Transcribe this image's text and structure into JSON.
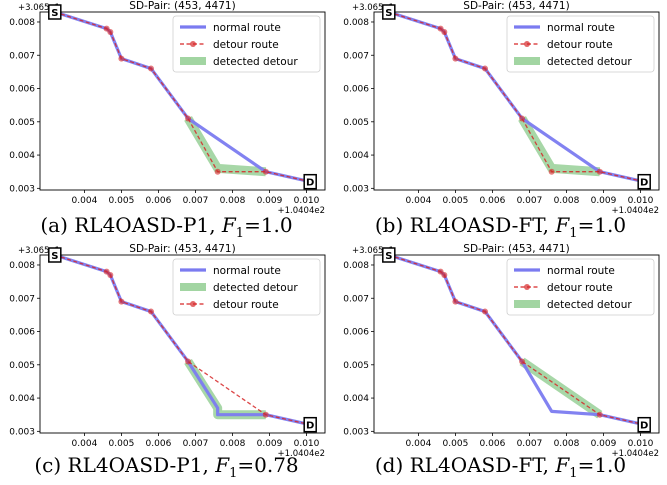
{
  "figure": {
    "panels": [
      {
        "caption": {
          "prefix": "(a) ",
          "method": "RL4OASD-P1",
          "f_label": "F",
          "f_sub": "1",
          "f_value": "=1.0"
        },
        "legend": [
          "normal route",
          "detour route",
          "detected detour"
        ]
      },
      {
        "caption": {
          "prefix": "(b) ",
          "method": "RL4OASD-FT",
          "f_label": "F",
          "f_sub": "1",
          "f_value": "=1.0"
        },
        "legend": [
          "normal route",
          "detour route",
          "detected detour"
        ]
      },
      {
        "caption": {
          "prefix": "(c) ",
          "method": "RL4OASD-P1",
          "f_label": "F",
          "f_sub": "1",
          "f_value": "=0.78"
        },
        "legend": [
          "normal route",
          "detected detour",
          "detour route"
        ]
      },
      {
        "caption": {
          "prefix": "(d) ",
          "method": "RL4OASD-FT",
          "f_label": "F",
          "f_sub": "1",
          "f_value": "=1.0"
        },
        "legend": [
          "normal route",
          "detour route",
          "detected detour"
        ]
      }
    ]
  },
  "chart_data": [
    {
      "type": "line",
      "title": "SD-Pair: (453, 4471)",
      "x_offset_label": "+1.0404e2",
      "y_offset_label": "+3.065e1",
      "xlim": [
        0.0028,
        0.0105
      ],
      "ylim": [
        0.00295,
        0.0083
      ],
      "x_ticks": [
        "0.004",
        "0.005",
        "0.006",
        "0.007",
        "0.008",
        "0.009",
        "0.010"
      ],
      "y_ticks": [
        "0.003",
        "0.004",
        "0.005",
        "0.006",
        "0.007",
        "0.008"
      ],
      "markers": [
        {
          "label": "S",
          "x": 0.0032,
          "y": 0.0083
        },
        {
          "label": "D",
          "x": 0.0101,
          "y": 0.0032
        }
      ],
      "series": [
        {
          "name": "normal route",
          "color": "#7b7bf0",
          "x": [
            0.0032,
            0.0046,
            0.0047,
            0.005,
            0.0058,
            0.0068,
            0.0089,
            0.0101
          ],
          "y": [
            0.0083,
            0.0078,
            0.0077,
            0.0069,
            0.0066,
            0.0051,
            0.0035,
            0.0032
          ]
        },
        {
          "name": "detour route",
          "color": "#d62728",
          "x": [
            0.0032,
            0.0046,
            0.0047,
            0.005,
            0.0058,
            0.0068,
            0.0076,
            0.0089,
            0.0101
          ],
          "y": [
            0.0083,
            0.0078,
            0.0077,
            0.0069,
            0.0066,
            0.0051,
            0.0035,
            0.0035,
            0.0032
          ]
        },
        {
          "name": "detected detour",
          "color": "#a2d5a2",
          "x": [
            0.0068,
            0.0076,
            0.0089
          ],
          "y": [
            0.0051,
            0.0036,
            0.0035
          ]
        }
      ]
    },
    {
      "type": "line",
      "title": "SD-Pair: (453, 4471)",
      "x_offset_label": "+1.0404e2",
      "y_offset_label": "+3.065e1",
      "xlim": [
        0.0028,
        0.0105
      ],
      "ylim": [
        0.00295,
        0.0083
      ],
      "x_ticks": [
        "0.004",
        "0.005",
        "0.006",
        "0.007",
        "0.008",
        "0.009",
        "0.010"
      ],
      "y_ticks": [
        "0.003",
        "0.004",
        "0.005",
        "0.006",
        "0.007",
        "0.008"
      ],
      "markers": [
        {
          "label": "S",
          "x": 0.0032,
          "y": 0.0083
        },
        {
          "label": "D",
          "x": 0.0101,
          "y": 0.0032
        }
      ],
      "series": [
        {
          "name": "normal route",
          "color": "#7b7bf0",
          "x": [
            0.0032,
            0.0046,
            0.0047,
            0.005,
            0.0058,
            0.0068,
            0.0089,
            0.0101
          ],
          "y": [
            0.0083,
            0.0078,
            0.0077,
            0.0069,
            0.0066,
            0.0051,
            0.0035,
            0.0032
          ]
        },
        {
          "name": "detour route",
          "color": "#d62728",
          "x": [
            0.0032,
            0.0046,
            0.0047,
            0.005,
            0.0058,
            0.0068,
            0.0076,
            0.0089,
            0.0101
          ],
          "y": [
            0.0083,
            0.0078,
            0.0077,
            0.0069,
            0.0066,
            0.0051,
            0.0035,
            0.0035,
            0.0032
          ]
        },
        {
          "name": "detected detour",
          "color": "#a2d5a2",
          "x": [
            0.0068,
            0.0076,
            0.0089
          ],
          "y": [
            0.0051,
            0.0036,
            0.0035
          ]
        }
      ]
    },
    {
      "type": "line",
      "title": "SD-Pair: (453, 4471)",
      "x_offset_label": "+1.0404e2",
      "y_offset_label": "+3.065e1",
      "xlim": [
        0.0028,
        0.0105
      ],
      "ylim": [
        0.00295,
        0.0083
      ],
      "x_ticks": [
        "0.004",
        "0.005",
        "0.006",
        "0.007",
        "0.008",
        "0.009",
        "0.010"
      ],
      "y_ticks": [
        "0.003",
        "0.004",
        "0.005",
        "0.006",
        "0.007",
        "0.008"
      ],
      "markers": [
        {
          "label": "S",
          "x": 0.0032,
          "y": 0.0083
        },
        {
          "label": "D",
          "x": 0.0101,
          "y": 0.0032
        }
      ],
      "series": [
        {
          "name": "normal route",
          "color": "#7b7bf0",
          "x": [
            0.0032,
            0.0046,
            0.0047,
            0.005,
            0.0058,
            0.0068,
            0.0076,
            0.0076,
            0.0089,
            0.0101
          ],
          "y": [
            0.0083,
            0.0078,
            0.0077,
            0.0069,
            0.0066,
            0.0051,
            0.0037,
            0.0035,
            0.0035,
            0.0032
          ]
        },
        {
          "name": "detected detour",
          "color": "#a2d5a2",
          "x": [
            0.0068,
            0.0076,
            0.0076,
            0.0089
          ],
          "y": [
            0.0051,
            0.0037,
            0.0035,
            0.0035
          ]
        },
        {
          "name": "detour route",
          "color": "#d62728",
          "x": [
            0.0032,
            0.0046,
            0.0047,
            0.005,
            0.0058,
            0.0068,
            0.0089,
            0.0101
          ],
          "y": [
            0.0083,
            0.0078,
            0.0077,
            0.0069,
            0.0066,
            0.0051,
            0.0035,
            0.0032
          ]
        }
      ]
    },
    {
      "type": "line",
      "title": "SD-Pair: (453, 4471)",
      "x_offset_label": "+1.0404e2",
      "y_offset_label": "+3.065e1",
      "xlim": [
        0.0028,
        0.0105
      ],
      "ylim": [
        0.00295,
        0.0083
      ],
      "x_ticks": [
        "0.004",
        "0.005",
        "0.006",
        "0.007",
        "0.008",
        "0.009",
        "0.010"
      ],
      "y_ticks": [
        "0.003",
        "0.004",
        "0.005",
        "0.006",
        "0.007",
        "0.008"
      ],
      "markers": [
        {
          "label": "S",
          "x": 0.0032,
          "y": 0.0083
        },
        {
          "label": "D",
          "x": 0.0101,
          "y": 0.0032
        }
      ],
      "series": [
        {
          "name": "normal route",
          "color": "#7b7bf0",
          "x": [
            0.0032,
            0.0046,
            0.0047,
            0.005,
            0.0058,
            0.0068,
            0.0076,
            0.0089,
            0.0101
          ],
          "y": [
            0.0083,
            0.0078,
            0.0077,
            0.0069,
            0.0066,
            0.0051,
            0.0036,
            0.0035,
            0.0032
          ]
        },
        {
          "name": "detour route",
          "color": "#d62728",
          "x": [
            0.0032,
            0.0046,
            0.0047,
            0.005,
            0.0058,
            0.0068,
            0.0089,
            0.0101
          ],
          "y": [
            0.0083,
            0.0078,
            0.0077,
            0.0069,
            0.0066,
            0.0051,
            0.0035,
            0.0032
          ]
        },
        {
          "name": "detected detour",
          "color": "#a2d5a2",
          "x": [
            0.0068,
            0.0089
          ],
          "y": [
            0.0051,
            0.0035
          ]
        }
      ]
    }
  ]
}
